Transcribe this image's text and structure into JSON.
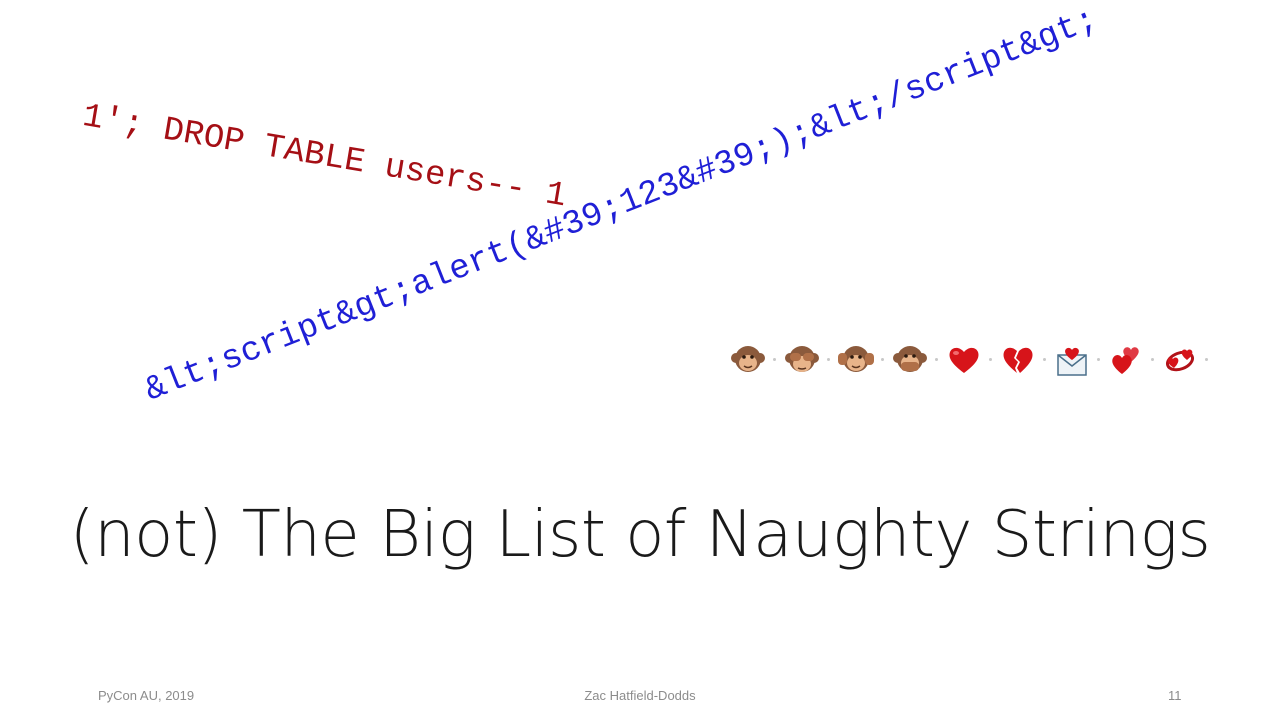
{
  "slide": {
    "sql_string": "1'; DROP TABLE users-- 1",
    "xss_string": "&lt;script&gt;alert(&#39;123&#39;);&lt;/script&gt;",
    "title": "(not) The Big List of Naughty Strings",
    "emoji": [
      "see-no-evil-monkey-icon",
      "hear-no-evil-monkey-icon",
      "speak-no-evil-monkey-icon",
      "heart-icon",
      "broken-heart-icon",
      "love-letter-icon",
      "two-hearts-icon",
      "revolving-hearts-icon"
    ],
    "colors": {
      "sql": "#a50f15",
      "xss": "#1f1fd6",
      "title": "#1a1a1a",
      "footer": "#8c8c8c"
    }
  },
  "footer": {
    "left": "PyCon AU, 2019",
    "center": "Zac Hatfield-Dodds",
    "page_number": "11"
  }
}
